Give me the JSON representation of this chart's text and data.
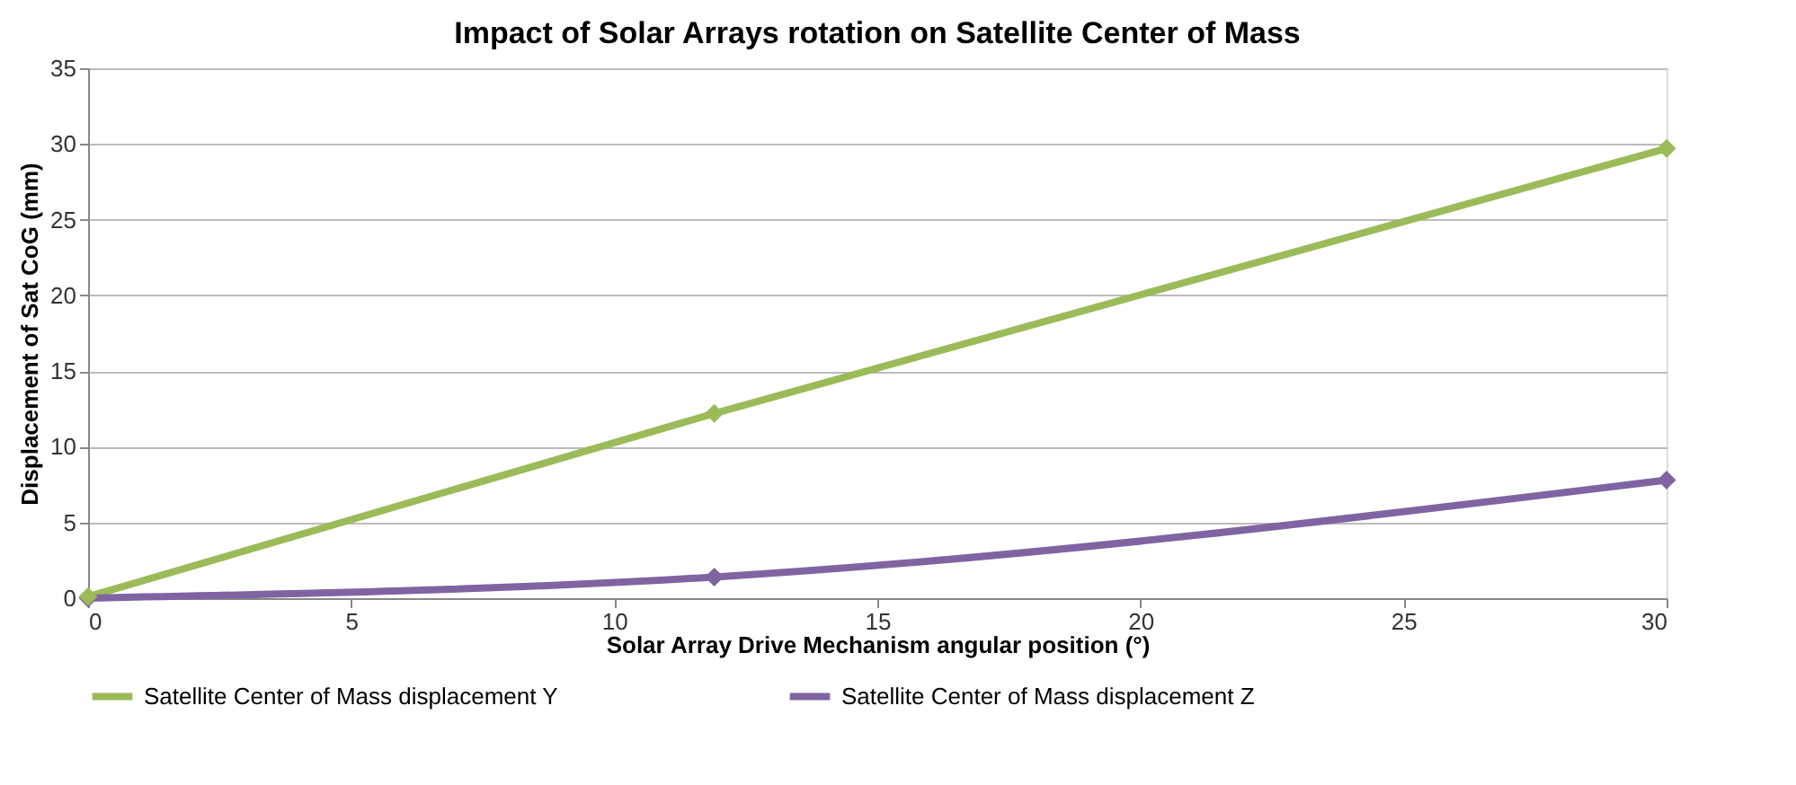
{
  "chart_data": {
    "type": "line",
    "title": "Impact of Solar Arrays rotation on Satellite Center of Mass",
    "xlabel": "Solar Array Drive Mechanism angular position (°)",
    "ylabel": "Displacement of  Sat CoG (mm)",
    "x": [
      0,
      11.9,
      30
    ],
    "series": [
      {
        "name": "Satellite Center of Mass displacement Y",
        "color": "#9bbb59",
        "values": [
          0.1,
          12.2,
          29.7
        ]
      },
      {
        "name": "Satellite Center of Mass displacement Z",
        "color": "#8064a2",
        "values": [
          0,
          1.4,
          7.8
        ]
      }
    ],
    "xlim": [
      0,
      30
    ],
    "xticks": [
      0,
      5,
      10,
      15,
      20,
      25,
      30
    ],
    "ylim": [
      0,
      35
    ],
    "yticks": [
      0,
      5,
      10,
      15,
      20,
      25,
      30,
      35
    ],
    "grid": "y",
    "legend": "bottom",
    "marker": "diamond",
    "line_style": "solid"
  }
}
